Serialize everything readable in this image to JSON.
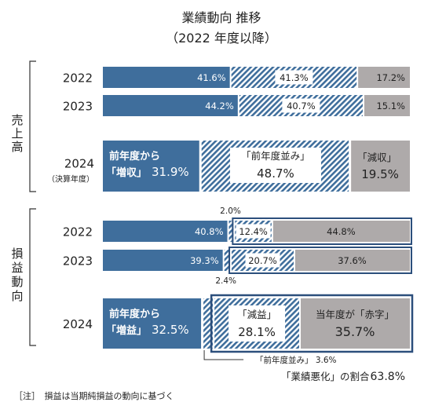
{
  "chart_data": {
    "type": "bar",
    "title": "業績動向 推移",
    "subtitle": "（2022 年度以降）",
    "sales": {
      "group_label": "売上高",
      "rows": [
        {
          "year": "2022",
          "increase": 41.6,
          "flat": 41.3,
          "decrease": 17.2,
          "increase_label": "41.6%",
          "flat_label": "41.3%",
          "decrease_label": "17.2%"
        },
        {
          "year": "2023",
          "increase": 44.2,
          "flat": 40.7,
          "decrease": 15.1,
          "increase_label": "44.2%",
          "flat_label": "40.7%",
          "decrease_label": "15.1%"
        },
        {
          "year": "2024",
          "year_note": "（決算年度）",
          "increase": 31.9,
          "flat": 48.7,
          "decrease": 19.5,
          "increase_caption": "前年度から",
          "increase_name": "「増収」",
          "increase_value": "31.9%",
          "flat_name": "「前年度並み」",
          "flat_value": "48.7%",
          "decrease_name": "「減収」",
          "decrease_value": "19.5%"
        }
      ]
    },
    "profit": {
      "group_label": "損益動向",
      "rows": [
        {
          "year": "2022",
          "increase": 40.8,
          "flat": 2.0,
          "decrease": 12.4,
          "deficit": 44.8,
          "increase_label": "40.8%",
          "flat_label": "2.0%",
          "decrease_label": "12.4%",
          "deficit_label": "44.8%"
        },
        {
          "year": "2023",
          "increase": 39.3,
          "flat": 2.4,
          "decrease": 20.7,
          "deficit": 37.6,
          "increase_label": "39.3%",
          "flat_label": "2.4%",
          "decrease_label": "20.7%",
          "deficit_label": "37.6%"
        },
        {
          "year": "2024",
          "increase": 32.5,
          "flat": 3.6,
          "decrease": 28.1,
          "deficit": 35.7,
          "increase_caption": "前年度から",
          "increase_name": "「増益」",
          "increase_value": "32.5%",
          "flat_note": "「前年度並み」 3.6%",
          "decrease_name": "「減益」",
          "decrease_value": "28.1%",
          "deficit_name": "当年度が「赤字」",
          "deficit_value": "35.7%"
        }
      ],
      "worsening_label": "「業績悪化」の割合",
      "worsening_value": "63.8%"
    },
    "note": "［注］　損益は当期純損益の動向に基づく",
    "colors": {
      "increase": "#3f6e9c",
      "flat_hatch": "#3f6e9c",
      "decrease": "#aeaaaa",
      "worsening_frame": "#2c4f7c"
    }
  }
}
